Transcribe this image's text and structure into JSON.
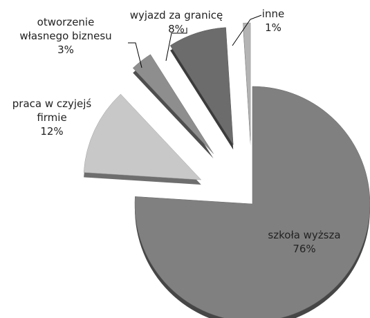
{
  "chart_data": {
    "type": "pie",
    "categories": [
      "szkoła wyższa",
      "praca w czyjejś firmie",
      "otworzenie własnego biznesu",
      "wyjazd za granicę",
      "inne"
    ],
    "values": [
      76,
      12,
      3,
      8,
      1
    ],
    "value_labels": [
      "76%",
      "12%",
      "3%",
      "8%",
      "1%"
    ],
    "colors": [
      "#808080",
      "#c8c8c8",
      "#8e8e8e",
      "#6c6c6c",
      "#b4b4b4"
    ]
  }
}
